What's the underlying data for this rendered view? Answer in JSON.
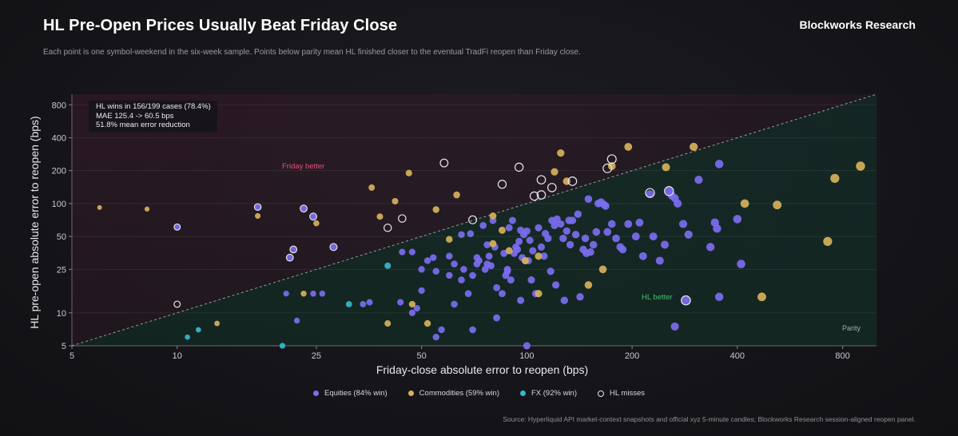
{
  "header": {
    "title": "HL Pre-Open Prices Usually Beat Friday Close",
    "brand": "Blockworks Research",
    "subtitle": "Each point is one symbol-weekend in the six-week sample. Points below parity mean HL finished closer to the eventual TradFi reopen than Friday close."
  },
  "stats": {
    "line1": "HL wins in 156/199 cases (78.4%)",
    "line2": "MAE 125.4 -> 60.5 bps",
    "line3": "51.8% mean error reduction"
  },
  "legend": {
    "equities": "Equities (84% win)",
    "commodities": "Commodities (59% win)",
    "fx": "FX (92% win)",
    "misses": "HL misses"
  },
  "footer": {
    "source": "Source: Hyperliquid API market-context snapshots and official xyz 5-minute candles; Blockworks Research session-aligned reopen panel."
  },
  "colors": {
    "equities": "#7b6df0",
    "commodities": "#d6b15a",
    "fx": "#38b6cf",
    "miss_ring": "#e6e6ee",
    "friday_better": "#e4527e",
    "hl_better": "#3ec46b"
  },
  "chart_data": {
    "type": "scatter",
    "xlabel": "Friday-close absolute error to reopen (bps)",
    "ylabel": "HL pre-open absolute error to reopen (bps)",
    "xscale": "log",
    "yscale": "log",
    "xlim": [
      5,
      1000
    ],
    "ylim": [
      5,
      1000
    ],
    "xticks": [
      5,
      10,
      25,
      50,
      100,
      200,
      400,
      800
    ],
    "yticks": [
      5,
      10,
      25,
      50,
      100,
      200,
      400,
      800
    ],
    "grid": "horizontal",
    "annotations": {
      "upper_region": "Friday better",
      "lower_region": "HL better",
      "parity_label": "Parity"
    },
    "series": [
      {
        "name": "Equities (84% win)",
        "color": "#7b6df0",
        "points": [
          [
            17,
            93
          ],
          [
            23,
            90
          ],
          [
            24.5,
            76
          ],
          [
            10,
            61
          ],
          [
            28,
            40
          ],
          [
            21.5,
            38
          ],
          [
            21,
            32
          ],
          [
            20.5,
            15
          ],
          [
            22,
            8.5
          ],
          [
            24.5,
            15
          ],
          [
            26,
            15
          ],
          [
            69,
            53
          ],
          [
            72,
            28
          ],
          [
            76,
            25
          ],
          [
            78,
            33
          ],
          [
            79,
            27
          ],
          [
            80,
            70
          ],
          [
            81,
            40
          ],
          [
            86,
            35
          ],
          [
            87,
            22
          ],
          [
            88,
            25
          ],
          [
            89,
            60
          ],
          [
            91,
            70
          ],
          [
            92,
            35
          ],
          [
            93,
            40
          ],
          [
            94,
            38
          ],
          [
            95,
            45
          ],
          [
            96,
            57
          ],
          [
            97,
            32
          ],
          [
            98,
            52
          ],
          [
            100,
            56
          ],
          [
            101,
            30
          ],
          [
            102,
            46
          ],
          [
            104,
            37
          ],
          [
            106,
            15
          ],
          [
            108,
            60
          ],
          [
            110,
            40
          ],
          [
            113,
            53
          ],
          [
            118,
            70
          ],
          [
            120,
            63
          ],
          [
            122,
            72
          ],
          [
            125,
            65
          ],
          [
            127,
            48
          ],
          [
            130,
            56
          ],
          [
            132,
            70
          ],
          [
            135,
            70
          ],
          [
            138,
            52
          ],
          [
            140,
            80
          ],
          [
            145,
            38
          ],
          [
            147,
            48
          ],
          [
            150,
            110
          ],
          [
            155,
            42
          ],
          [
            158,
            55
          ],
          [
            160,
            100
          ],
          [
            163,
            103
          ],
          [
            166,
            98
          ],
          [
            168,
            95
          ],
          [
            170,
            55
          ],
          [
            175,
            65
          ],
          [
            180,
            48
          ],
          [
            185,
            40
          ],
          [
            188,
            38
          ],
          [
            195,
            65
          ],
          [
            205,
            50
          ],
          [
            210,
            67
          ],
          [
            215,
            33
          ],
          [
            225,
            122
          ],
          [
            230,
            50
          ],
          [
            240,
            30
          ],
          [
            248,
            42
          ],
          [
            255,
            130
          ],
          [
            260,
            118
          ],
          [
            265,
            112
          ],
          [
            270,
            100
          ],
          [
            280,
            65
          ],
          [
            290,
            52
          ],
          [
            310,
            165
          ],
          [
            335,
            40
          ],
          [
            345,
            67
          ],
          [
            350,
            59
          ],
          [
            355,
            14
          ],
          [
            400,
            72
          ],
          [
            410,
            28
          ],
          [
            265,
            7.5
          ],
          [
            285,
            13
          ],
          [
            44,
            36
          ],
          [
            47,
            36
          ],
          [
            50,
            25
          ],
          [
            52,
            30
          ],
          [
            54,
            32
          ],
          [
            55,
            24
          ],
          [
            60,
            33
          ],
          [
            62,
            28
          ],
          [
            65,
            52
          ],
          [
            66,
            25
          ],
          [
            70,
            22
          ],
          [
            73,
            30
          ],
          [
            75,
            63
          ],
          [
            77,
            42
          ],
          [
            82,
            17
          ],
          [
            85,
            15
          ],
          [
            88,
            24
          ],
          [
            90,
            20
          ],
          [
            96,
            13
          ],
          [
            99,
            30
          ],
          [
            103,
            20
          ],
          [
            112,
            33
          ],
          [
            115,
            48
          ],
          [
            117,
            24
          ],
          [
            121,
            18
          ],
          [
            128,
            13
          ],
          [
            133,
            42
          ],
          [
            142,
            14
          ],
          [
            148,
            35
          ],
          [
            152,
            36
          ],
          [
            34,
            12
          ],
          [
            35.5,
            12.5
          ],
          [
            43.5,
            12.5
          ],
          [
            47,
            10
          ],
          [
            48.5,
            11
          ],
          [
            50,
            16
          ],
          [
            55,
            6
          ],
          [
            57,
            7
          ],
          [
            60,
            22
          ],
          [
            62,
            12
          ],
          [
            65,
            20
          ],
          [
            68,
            15
          ],
          [
            70,
            7
          ],
          [
            72,
            32
          ],
          [
            77,
            28
          ],
          [
            82,
            9
          ],
          [
            100,
            5
          ],
          [
            355,
            230
          ]
        ]
      },
      {
        "name": "Commodities (59% win)",
        "color": "#d6b15a",
        "points": [
          [
            6,
            92
          ],
          [
            8.2,
            89
          ],
          [
            17,
            77
          ],
          [
            36,
            140
          ],
          [
            38,
            76
          ],
          [
            42,
            105
          ],
          [
            46,
            190
          ],
          [
            55,
            88
          ],
          [
            63,
            120
          ],
          [
            80,
            77
          ],
          [
            85,
            57
          ],
          [
            89,
            37
          ],
          [
            99,
            30
          ],
          [
            108,
            33
          ],
          [
            120,
            195
          ],
          [
            125,
            290
          ],
          [
            130,
            160
          ],
          [
            175,
            220
          ],
          [
            195,
            330
          ],
          [
            250,
            215
          ],
          [
            300,
            330
          ],
          [
            420,
            100
          ],
          [
            520,
            97
          ],
          [
            760,
            170
          ],
          [
            900,
            220
          ],
          [
            725,
            45
          ],
          [
            470,
            14
          ],
          [
            150,
            18
          ],
          [
            165,
            25
          ],
          [
            108,
            15
          ],
          [
            80,
            43
          ],
          [
            60,
            47
          ],
          [
            52,
            8
          ],
          [
            47,
            12
          ],
          [
            40,
            8
          ],
          [
            23,
            15
          ],
          [
            13,
            8
          ],
          [
            25,
            66
          ]
        ]
      },
      {
        "name": "FX (92% win)",
        "color": "#38b6cf",
        "points": [
          [
            10.7,
            6
          ],
          [
            11.5,
            7
          ],
          [
            31,
            12
          ],
          [
            40,
            27
          ],
          [
            20,
            5
          ]
        ]
      },
      {
        "name": "HL misses",
        "color": "#e6e6ee",
        "points": [
          [
            17,
            93
          ],
          [
            23,
            90
          ],
          [
            24.5,
            76
          ],
          [
            10,
            61
          ],
          [
            28,
            40
          ],
          [
            21.5,
            38
          ],
          [
            21,
            32
          ],
          [
            10,
            12
          ],
          [
            40,
            60
          ],
          [
            44,
            73
          ],
          [
            58,
            235
          ],
          [
            70,
            71
          ],
          [
            85,
            150
          ],
          [
            95,
            215
          ],
          [
            105,
            117
          ],
          [
            110,
            120
          ],
          [
            110,
            165
          ],
          [
            118,
            140
          ],
          [
            135,
            160
          ],
          [
            170,
            210
          ],
          [
            175,
            255
          ],
          [
            225,
            125
          ],
          [
            255,
            130
          ],
          [
            285,
            13
          ]
        ]
      }
    ]
  }
}
